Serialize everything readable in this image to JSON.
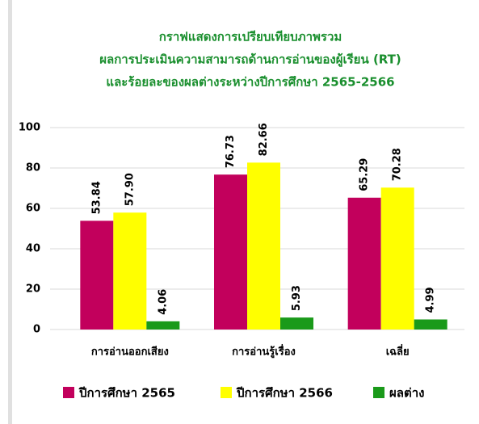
{
  "chart_data": {
    "type": "bar",
    "title": [
      "กราฟแสดงการเปรียบเทียบภาพรวม",
      "ผลการประเมินความสามารถด้านการอ่านของผู้เรียน (RT)",
      "และร้อยละของผลต่างระหว่างปีการศึกษา 2565-2566"
    ],
    "categories": [
      "การอ่านออกเสียง",
      "การอ่านรู้เรื่อง",
      "เฉลี่ย"
    ],
    "series": [
      {
        "name": "ปีการศึกษา 2565",
        "color": "#c2005c",
        "values": [
          53.84,
          76.73,
          65.29
        ],
        "value_labels": [
          "53.84",
          "76.73",
          "65.29"
        ]
      },
      {
        "name": "ปีการศึกษา 2566",
        "color": "#ffff00",
        "values": [
          57.9,
          82.66,
          70.28
        ],
        "value_labels": [
          "57.90",
          "82.66",
          "70.28"
        ]
      },
      {
        "name": "ผลต่าง",
        "color": "#1a9a1a",
        "values": [
          4.06,
          5.93,
          4.99
        ],
        "value_labels": [
          "4.06",
          "5.93",
          "4.99"
        ]
      }
    ],
    "ylim": [
      0,
      100
    ],
    "yticks": [
      0,
      20,
      40,
      60,
      80,
      100
    ],
    "grid": true,
    "legend": "bottom"
  }
}
